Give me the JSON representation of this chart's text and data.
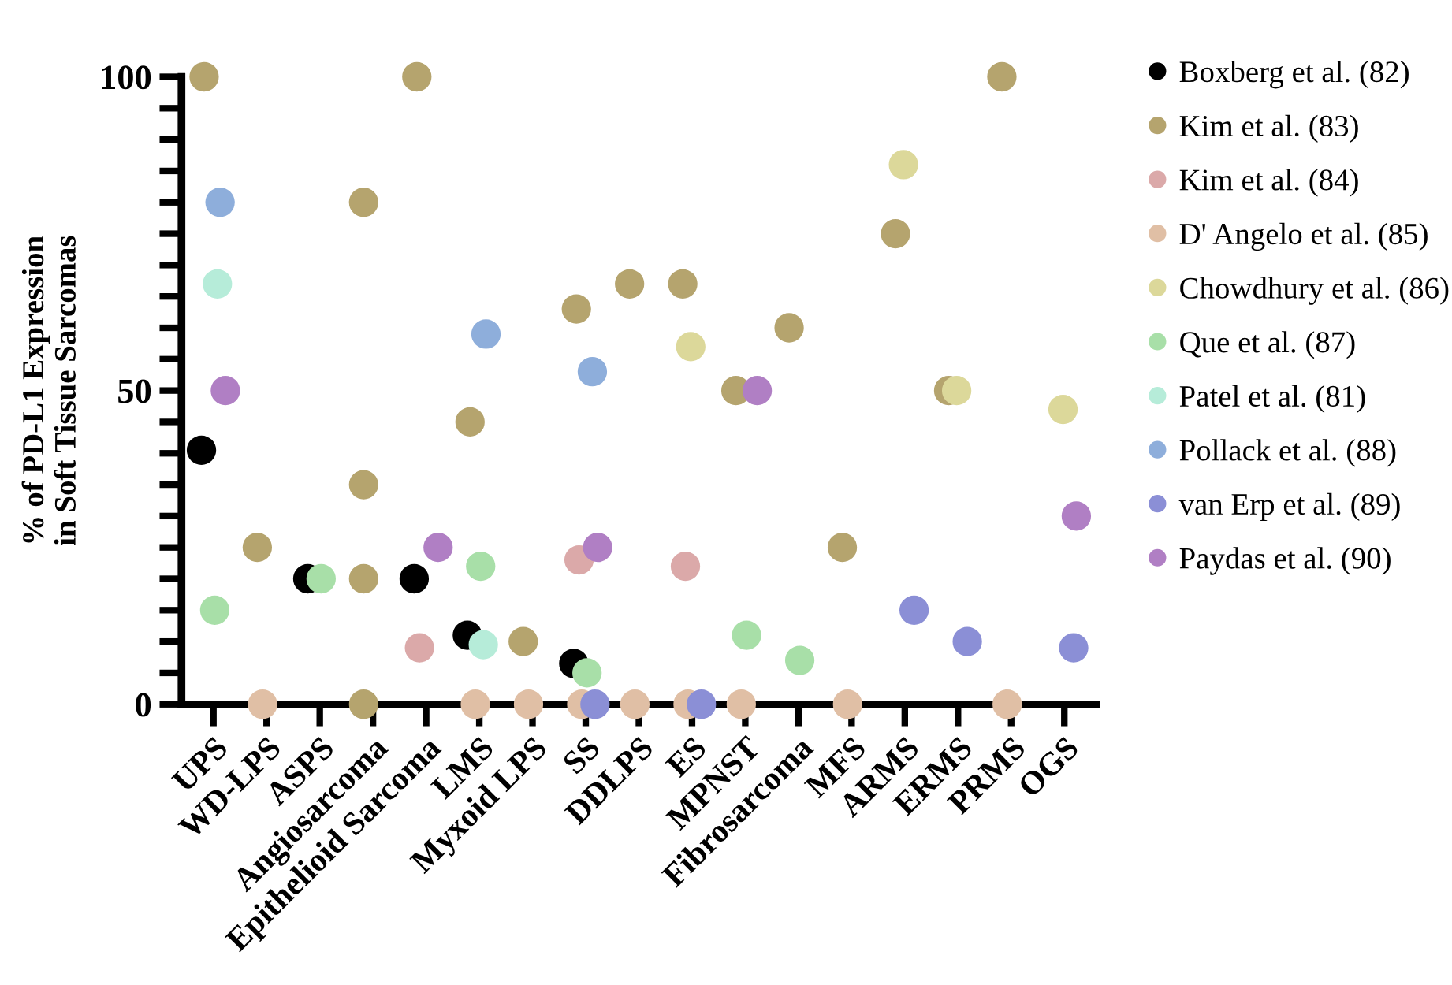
{
  "chart_data": {
    "type": "scatter",
    "ylabel": "% of PD-L1 Expression\nin Soft Tissue Sarcomas",
    "categories": [
      "UPS",
      "WD-LPS",
      "ASPS",
      "Angiosarcoma",
      "Epithelioid Sarcoma",
      "LMS",
      "Myxoid LPS",
      "SS",
      "DDLPS",
      "ES",
      "MPNST",
      "Fibrosarcoma",
      "MFS",
      "ARMS",
      "ERMS",
      "PRMS",
      "OGS"
    ],
    "ylim": [
      0,
      100
    ],
    "yticks": [
      0,
      {
        "value": 5,
        "label": null
      },
      {
        "value": 10,
        "label": null
      },
      {
        "value": 15,
        "label": null
      },
      {
        "value": 20,
        "label": null
      },
      {
        "value": 25,
        "label": null
      },
      {
        "value": 30,
        "label": null
      },
      {
        "value": 35,
        "label": null
      },
      {
        "value": 40,
        "label": null
      },
      {
        "value": 45,
        "label": null
      },
      50,
      {
        "value": 55,
        "label": null
      },
      {
        "value": 60,
        "label": null
      },
      {
        "value": 65,
        "label": null
      },
      {
        "value": 70,
        "label": null
      },
      {
        "value": 75,
        "label": null
      },
      {
        "value": 80,
        "label": null
      },
      {
        "value": 85,
        "label": null
      },
      {
        "value": 90,
        "label": null
      },
      {
        "value": 95,
        "label": null
      },
      100
    ],
    "marker": "circle",
    "legend": "right",
    "grid": false,
    "series": [
      {
        "name": "Boxberg et al. (82)",
        "color": "#000000",
        "x": [
          "UPS",
          "ASPS",
          "Epithelioid Sarcoma",
          "LMS",
          "SS"
        ],
        "values": [
          40.5,
          20,
          20,
          11,
          6.5
        ]
      },
      {
        "name": "Kim et al. (83)",
        "color": "#b5a46e",
        "x": [
          "UPS",
          "WD-LPS",
          "Angiosarcoma",
          "Angiosarcoma",
          "Angiosarcoma",
          "Angiosarcoma",
          "Epithelioid Sarcoma",
          "LMS",
          "Myxoid LPS",
          "SS",
          "DDLPS",
          "ES",
          "MPNST",
          "Fibrosarcoma",
          "MFS",
          "ARMS",
          "ERMS",
          "PRMS"
        ],
        "values": [
          100,
          25,
          80,
          35,
          20,
          0,
          100,
          45,
          10,
          63,
          67,
          67,
          50,
          60,
          25,
          75,
          50,
          100
        ]
      },
      {
        "name": "Kim et al. (84)",
        "color": "#dba9a9",
        "x": [
          "Epithelioid Sarcoma",
          "SS",
          "ES"
        ],
        "values": [
          9,
          23,
          22
        ]
      },
      {
        "name": "D' Angelo et al. (85)",
        "color": "#e0bfa5",
        "x": [
          "WD-LPS",
          "LMS",
          "Myxoid LPS",
          "SS",
          "DDLPS",
          "ES",
          "MPNST",
          "MFS",
          "PRMS"
        ],
        "values": [
          0,
          0,
          0,
          0,
          0,
          0,
          0,
          0,
          0
        ]
      },
      {
        "name": "Chowdhury et al. (86)",
        "color": "#dcd89a",
        "x": [
          "ES",
          "ARMS",
          "ERMS",
          "OGS"
        ],
        "values": [
          57,
          86,
          50,
          47
        ]
      },
      {
        "name": "Que et al. (87)",
        "color": "#a8dfa8",
        "x": [
          "UPS",
          "ASPS",
          "LMS",
          "SS",
          "MPNST",
          "Fibrosarcoma"
        ],
        "values": [
          15,
          20,
          22,
          5,
          11,
          7
        ]
      },
      {
        "name": "Patel et al. (81)",
        "color": "#b6ecd9",
        "x": [
          "UPS",
          "LMS"
        ],
        "values": [
          67,
          9.5
        ]
      },
      {
        "name": "Pollack et al. (88)",
        "color": "#8eaedb",
        "x": [
          "UPS",
          "LMS",
          "SS"
        ],
        "values": [
          80,
          59,
          53
        ]
      },
      {
        "name": "van Erp et al. (89)",
        "color": "#8b8fd6",
        "x": [
          "SS",
          "ES",
          "ARMS",
          "ERMS",
          "OGS"
        ],
        "values": [
          0,
          0,
          15,
          10,
          9
        ]
      },
      {
        "name": "Paydas et al. (90)",
        "color": "#b07fc4",
        "x": [
          "UPS",
          "Epithelioid Sarcoma",
          "SS",
          "MPNST",
          "OGS"
        ],
        "values": [
          50,
          25,
          25,
          50,
          30
        ]
      }
    ]
  }
}
